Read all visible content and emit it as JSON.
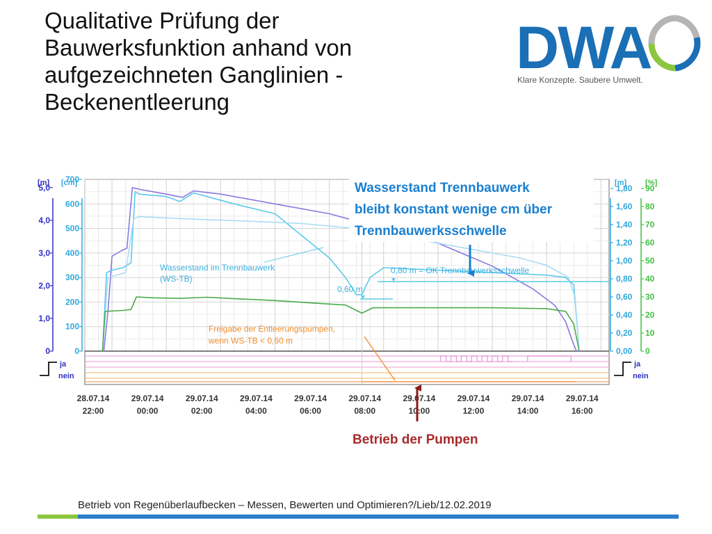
{
  "slide": {
    "title_lines": [
      "Qualitative Prüfung der",
      "Bauwerksfunktion anhand von",
      "aufgezeichneten Ganglinien -",
      "Beckenentleerung"
    ],
    "footer": "Betrieb von Regenüberlaufbecken – Messen, Bewerten und Optimieren?/Lieb/12.02.2019"
  },
  "logo": {
    "wordmark": "DWA",
    "tagline": "Klare Konzepte. Saubere Umwelt.",
    "colors": {
      "text": "#1a6fb5",
      "tagline": "#555555",
      "ring_green": "#8cc63f",
      "ring_gray": "#b5b5b5",
      "ring_blue": "#1a6fb5"
    }
  },
  "chart_data": {
    "type": "line",
    "x": {
      "tick_labels": [
        [
          "28.07.14",
          "22:00"
        ],
        [
          "29.07.14",
          "00:00"
        ],
        [
          "29.07.14",
          "02:00"
        ],
        [
          "29.07.14",
          "04:00"
        ],
        [
          "29.07.14",
          "06:00"
        ],
        [
          "29.07.14",
          "08:00"
        ],
        [
          "29.07.14",
          "10:00"
        ],
        [
          "29.07.14",
          "12:00"
        ],
        [
          "29.07.14",
          "14:00"
        ],
        [
          "29.07.14",
          "16:00"
        ]
      ],
      "range_hours": [
        -1.0,
        18.3
      ]
    },
    "axes": {
      "left_m": {
        "unit": "[m]",
        "ticks": [
          "0",
          "1,0",
          "2,0",
          "3,0",
          "4,0",
          "5,0"
        ],
        "range": [
          0,
          5.25
        ]
      },
      "left_cm": {
        "unit": "[cm]",
        "ticks": [
          "0",
          "100",
          "200",
          "300",
          "400",
          "500",
          "600",
          "700"
        ],
        "range": [
          0,
          700
        ]
      },
      "right_m": {
        "unit": "[m]",
        "ticks": [
          "0,00",
          "0,20",
          "0,40",
          "0,60",
          "0,80",
          "1,00",
          "1,20",
          "1,40",
          "1,60",
          "1,80"
        ],
        "range": [
          0,
          1.9
        ]
      },
      "right_pct": {
        "unit": "[%]",
        "ticks": [
          "0",
          "10",
          "20",
          "30",
          "40",
          "50",
          "60",
          "70",
          "80",
          "90"
        ],
        "range": [
          0,
          95
        ]
      }
    },
    "digital_legend": {
      "on": "ja",
      "off": "nein"
    },
    "grid": true,
    "colors": {
      "purple": "#8878e0",
      "cyan": "#5cc8ec",
      "lightblue": "#a8dcf4",
      "green": "#4aaa4a",
      "axis_m_left": "#3030c0",
      "axis_cm": "#30a8dc",
      "axis_m_right": "#30a8dc",
      "axis_pct": "#40c040",
      "orange": "#f08c2c",
      "blue_callout": "#1a7fd0",
      "red_callout": "#8b1a1a"
    },
    "series": [
      {
        "axis": "left_m",
        "color": "purple",
        "points": [
          [
            -0.3,
            0
          ],
          [
            -0.15,
            1.2
          ],
          [
            0,
            2.9
          ],
          [
            0.3,
            3.05
          ],
          [
            0.55,
            3.15
          ],
          [
            0.75,
            5.0
          ],
          [
            1,
            4.95
          ],
          [
            2,
            4.8
          ],
          [
            2.6,
            4.7
          ],
          [
            3,
            4.9
          ],
          [
            4,
            4.8
          ],
          [
            6,
            4.5
          ],
          [
            8,
            4.2
          ],
          [
            10,
            3.75
          ],
          [
            12,
            3.3
          ],
          [
            14,
            2.6
          ],
          [
            15.5,
            1.9
          ],
          [
            16.3,
            1.4
          ],
          [
            16.7,
            0.9
          ],
          [
            16.95,
            0.3
          ],
          [
            17.1,
            0
          ]
        ]
      },
      {
        "axis": "left_cm",
        "color": "cyan",
        "points": [
          [
            -0.35,
            0
          ],
          [
            -0.2,
            320
          ],
          [
            0,
            330
          ],
          [
            0.4,
            340
          ],
          [
            0.7,
            360
          ],
          [
            0.85,
            650
          ],
          [
            1,
            640
          ],
          [
            2,
            630
          ],
          [
            2.5,
            610
          ],
          [
            3.0,
            645
          ],
          [
            3.5,
            630
          ],
          [
            4.5,
            600
          ],
          [
            6,
            560
          ],
          [
            7,
            470
          ],
          [
            8.0,
            380
          ],
          [
            8.6,
            300
          ],
          [
            9.0,
            230
          ],
          [
            9.2,
            230
          ],
          [
            9.5,
            300
          ],
          [
            10,
            340
          ],
          [
            12,
            330
          ],
          [
            14,
            320
          ],
          [
            16,
            310
          ],
          [
            16.7,
            300
          ],
          [
            17,
            270
          ],
          [
            17.2,
            0
          ]
        ]
      },
      {
        "axis": "left_cm",
        "color": "lightblue",
        "points": [
          [
            -0.35,
            0
          ],
          [
            -0.15,
            300
          ],
          [
            0.5,
            320
          ],
          [
            0.8,
            540
          ],
          [
            1,
            548
          ],
          [
            3,
            538
          ],
          [
            5,
            530
          ],
          [
            7,
            520
          ],
          [
            9,
            500
          ],
          [
            11,
            460
          ],
          [
            13,
            420
          ],
          [
            15,
            380
          ],
          [
            16,
            350
          ],
          [
            16.8,
            300
          ],
          [
            17.05,
            220
          ],
          [
            17.2,
            0
          ]
        ]
      },
      {
        "axis": "right_pct",
        "color": "green",
        "points": [
          [
            -0.35,
            0
          ],
          [
            -0.25,
            22
          ],
          [
            0.4,
            22.5
          ],
          [
            0.7,
            23
          ],
          [
            0.9,
            30
          ],
          [
            1.5,
            29.5
          ],
          [
            2.5,
            29.2
          ],
          [
            3.5,
            29.8
          ],
          [
            4.5,
            29
          ],
          [
            6,
            28
          ],
          [
            7.5,
            26.5
          ],
          [
            8.6,
            25.5
          ],
          [
            9.2,
            21
          ],
          [
            9.6,
            24
          ],
          [
            12,
            24
          ],
          [
            14,
            24
          ],
          [
            16,
            23.5
          ],
          [
            16.7,
            22
          ],
          [
            17.0,
            15
          ],
          [
            17.2,
            0
          ]
        ]
      }
    ],
    "annotations": [
      {
        "text_lines": [
          "Wasserstand im Trennbauwerk",
          "(WS-TB)"
        ],
        "color": "cyan"
      },
      {
        "text_lines": [
          "0,60 m"
        ],
        "color": "cyan"
      },
      {
        "text_lines": [
          "0,80 m = OK Trennbauwerksschwelle"
        ],
        "color": "cyan"
      },
      {
        "text_lines": [
          "Freigabe der Entleerungspumpen,",
          "wenn WS-TB < 0,60 m"
        ],
        "color": "orange"
      }
    ],
    "callouts": [
      {
        "text_lines": [
          "Wasserstand Trennbauwerk",
          "bleibt konstant wenige cm über",
          "Trennbauwerksschwelle"
        ],
        "color": "blue_callout"
      },
      {
        "text_lines": [
          "Betrieb der Pumpen"
        ],
        "color": "red_callout"
      }
    ]
  }
}
